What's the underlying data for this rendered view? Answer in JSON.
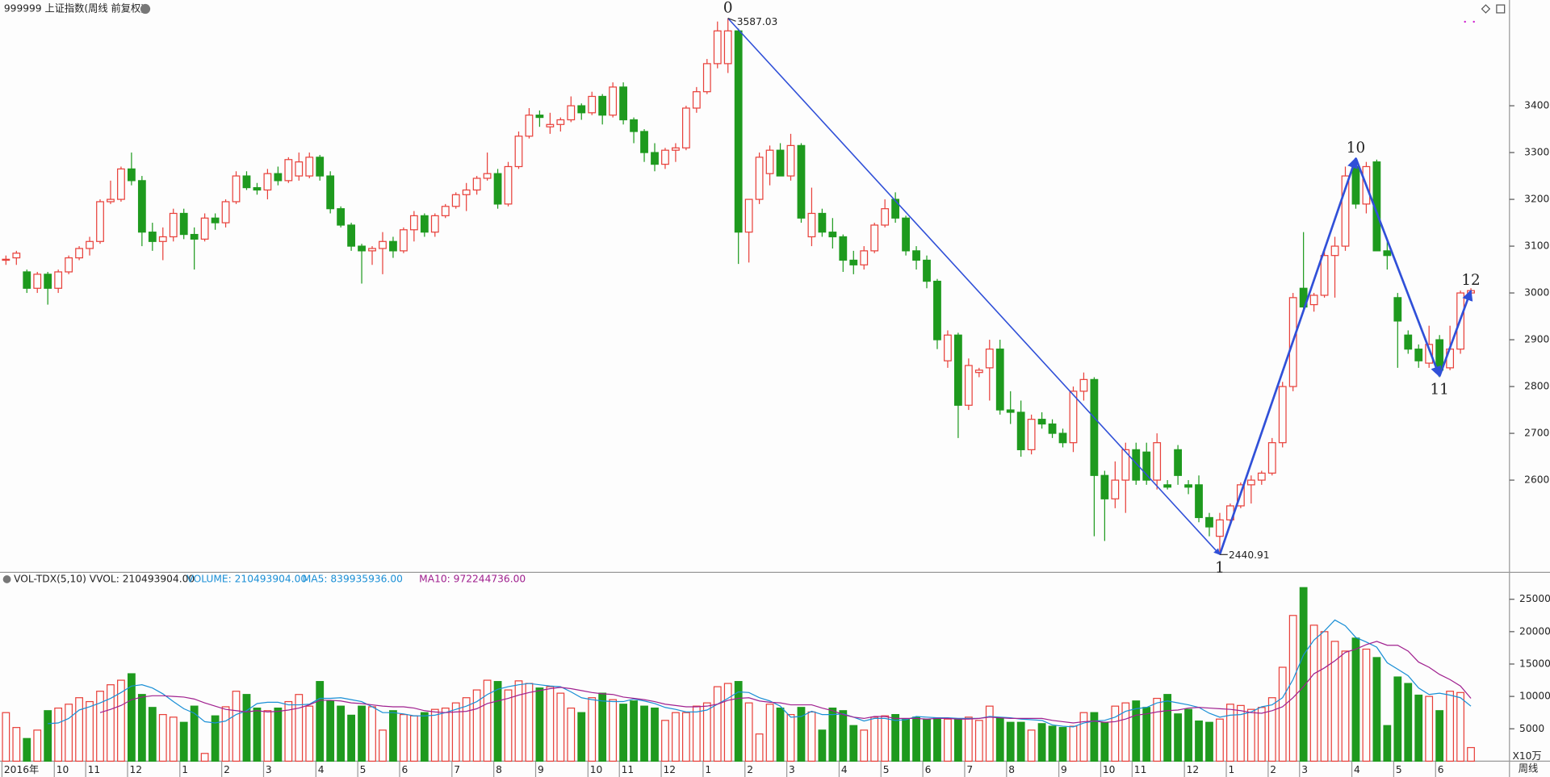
{
  "chart_data": {
    "type": "candlestick",
    "title": "999999 上证指数(周线 前复权)",
    "period_label": "周线",
    "vol_unit": "X10万",
    "vol_header": {
      "indicator": "VOL-TDX(5,10) VVOL: 210493904.00",
      "volume": "VOLUME: 210493904.00",
      "ma5": "MA5: 839935936.00",
      "ma10": "MA10: 972244736.00"
    },
    "up_color": "#e8403a",
    "down_color": "#1e9a1e",
    "ma5_color": "#1a8fd6",
    "ma10_color": "#a0208f",
    "wave_color": "#3050d8",
    "ylim": [
      2405,
      3626
    ],
    "yticks": [
      2600,
      2700,
      2800,
      2900,
      3000,
      3100,
      3200,
      3300,
      3400
    ],
    "vol_ylim": [
      0,
      29000
    ],
    "vol_yticks": [
      5000,
      10000,
      15000,
      20000,
      25000
    ],
    "categories": [
      "2016年",
      null,
      null,
      null,
      null,
      "10",
      null,
      null,
      "11",
      null,
      null,
      null,
      "12",
      null,
      null,
      null,
      null,
      "1",
      null,
      null,
      null,
      "2",
      null,
      null,
      null,
      "3",
      null,
      null,
      null,
      null,
      "4",
      null,
      null,
      null,
      "5",
      null,
      null,
      null,
      "6",
      null,
      null,
      null,
      null,
      "7",
      null,
      null,
      null,
      "8",
      null,
      null,
      null,
      "9",
      null,
      null,
      null,
      null,
      "10",
      null,
      null,
      "11",
      null,
      null,
      null,
      "12",
      null,
      null,
      null,
      "1",
      null,
      null,
      null,
      "2",
      null,
      null,
      null,
      "3",
      null,
      null,
      null,
      null,
      "4",
      null,
      null,
      null,
      "5",
      null,
      null,
      null,
      "6",
      null,
      null,
      null,
      "7",
      null,
      null,
      null,
      "8",
      null,
      null,
      null,
      null,
      "9",
      null,
      null,
      null,
      "10",
      null,
      null,
      "11",
      null,
      null,
      null,
      null,
      "12",
      null,
      null,
      null,
      "1",
      null,
      null,
      null,
      "2",
      null,
      null,
      "3",
      null,
      null,
      null,
      null,
      "4",
      null,
      null,
      null,
      "5",
      null,
      null,
      null,
      "6",
      null,
      null,
      null
    ],
    "candles": [
      [
        3070,
        3080,
        3060,
        3072
      ],
      [
        3075,
        3090,
        3060,
        3085
      ],
      [
        3045,
        3050,
        3000,
        3010
      ],
      [
        3010,
        3045,
        3000,
        3040
      ],
      [
        3040,
        3045,
        2975,
        3010
      ],
      [
        3010,
        3050,
        3000,
        3045
      ],
      [
        3045,
        3080,
        3040,
        3075
      ],
      [
        3075,
        3100,
        3070,
        3095
      ],
      [
        3095,
        3120,
        3080,
        3110
      ],
      [
        3110,
        3200,
        3105,
        3195
      ],
      [
        3195,
        3240,
        3190,
        3200
      ],
      [
        3200,
        3270,
        3195,
        3265
      ],
      [
        3265,
        3300,
        3230,
        3240
      ],
      [
        3240,
        3250,
        3100,
        3130
      ],
      [
        3130,
        3150,
        3090,
        3110
      ],
      [
        3110,
        3140,
        3070,
        3120
      ],
      [
        3120,
        3180,
        3110,
        3170
      ],
      [
        3170,
        3180,
        3115,
        3125
      ],
      [
        3125,
        3140,
        3050,
        3115
      ],
      [
        3115,
        3170,
        3110,
        3160
      ],
      [
        3160,
        3170,
        3135,
        3150
      ],
      [
        3150,
        3200,
        3140,
        3195
      ],
      [
        3195,
        3260,
        3190,
        3250
      ],
      [
        3250,
        3260,
        3220,
        3225
      ],
      [
        3225,
        3235,
        3210,
        3220
      ],
      [
        3220,
        3265,
        3200,
        3255
      ],
      [
        3255,
        3270,
        3230,
        3240
      ],
      [
        3240,
        3290,
        3235,
        3285
      ],
      [
        3250,
        3300,
        3240,
        3280
      ],
      [
        3250,
        3300,
        3245,
        3290
      ],
      [
        3290,
        3295,
        3240,
        3250
      ],
      [
        3250,
        3260,
        3170,
        3180
      ],
      [
        3180,
        3185,
        3140,
        3145
      ],
      [
        3145,
        3150,
        3090,
        3100
      ],
      [
        3100,
        3105,
        3020,
        3090
      ],
      [
        3090,
        3100,
        3060,
        3095
      ],
      [
        3095,
        3130,
        3040,
        3110
      ],
      [
        3110,
        3120,
        3075,
        3090
      ],
      [
        3090,
        3140,
        3085,
        3135
      ],
      [
        3135,
        3175,
        3110,
        3165
      ],
      [
        3165,
        3170,
        3120,
        3130
      ],
      [
        3130,
        3170,
        3120,
        3165
      ],
      [
        3165,
        3190,
        3160,
        3185
      ],
      [
        3185,
        3215,
        3180,
        3210
      ],
      [
        3210,
        3235,
        3175,
        3220
      ],
      [
        3220,
        3250,
        3210,
        3245
      ],
      [
        3245,
        3300,
        3240,
        3255
      ],
      [
        3255,
        3265,
        3180,
        3190
      ],
      [
        3190,
        3280,
        3185,
        3270
      ],
      [
        3270,
        3345,
        3265,
        3335
      ],
      [
        3335,
        3395,
        3330,
        3380
      ],
      [
        3380,
        3390,
        3355,
        3375
      ],
      [
        3355,
        3385,
        3340,
        3360
      ],
      [
        3360,
        3375,
        3345,
        3370
      ],
      [
        3370,
        3420,
        3365,
        3400
      ],
      [
        3400,
        3405,
        3370,
        3385
      ],
      [
        3385,
        3430,
        3380,
        3420
      ],
      [
        3420,
        3425,
        3360,
        3380
      ],
      [
        3380,
        3450,
        3375,
        3440
      ],
      [
        3440,
        3450,
        3360,
        3370
      ],
      [
        3370,
        3375,
        3320,
        3345
      ],
      [
        3345,
        3350,
        3280,
        3300
      ],
      [
        3300,
        3320,
        3260,
        3275
      ],
      [
        3275,
        3310,
        3265,
        3305
      ],
      [
        3305,
        3320,
        3280,
        3310
      ],
      [
        3310,
        3400,
        3305,
        3395
      ],
      [
        3395,
        3440,
        3385,
        3430
      ],
      [
        3430,
        3500,
        3425,
        3490
      ],
      [
        3490,
        3580,
        3480,
        3560
      ],
      [
        3490,
        3587.03,
        3470,
        3560
      ],
      [
        3560,
        3565,
        3062,
        3130
      ],
      [
        3130,
        3200,
        3065,
        3200
      ],
      [
        3200,
        3300,
        3190,
        3290
      ],
      [
        3255,
        3315,
        3230,
        3305
      ],
      [
        3305,
        3320,
        3250,
        3250
      ],
      [
        3250,
        3340,
        3240,
        3315
      ],
      [
        3315,
        3320,
        3150,
        3160
      ],
      [
        3120,
        3225,
        3100,
        3170
      ],
      [
        3170,
        3180,
        3120,
        3130
      ],
      [
        3130,
        3160,
        3095,
        3120
      ],
      [
        3120,
        3125,
        3045,
        3070
      ],
      [
        3070,
        3090,
        3040,
        3060
      ],
      [
        3060,
        3100,
        3050,
        3090
      ],
      [
        3090,
        3150,
        3085,
        3145
      ],
      [
        3145,
        3200,
        3140,
        3180
      ],
      [
        3200,
        3215,
        3150,
        3160
      ],
      [
        3160,
        3165,
        3080,
        3090
      ],
      [
        3090,
        3100,
        3050,
        3070
      ],
      [
        3070,
        3080,
        3010,
        3025
      ],
      [
        3025,
        3030,
        2880,
        2900
      ],
      [
        2855,
        2920,
        2840,
        2910
      ],
      [
        2910,
        2915,
        2690,
        2760
      ],
      [
        2760,
        2860,
        2750,
        2845
      ],
      [
        2830,
        2840,
        2820,
        2835
      ],
      [
        2840,
        2900,
        2770,
        2880
      ],
      [
        2880,
        2900,
        2740,
        2750
      ],
      [
        2750,
        2790,
        2720,
        2745
      ],
      [
        2745,
        2770,
        2650,
        2665
      ],
      [
        2665,
        2740,
        2655,
        2730
      ],
      [
        2730,
        2745,
        2710,
        2720
      ],
      [
        2720,
        2730,
        2690,
        2700
      ],
      [
        2700,
        2710,
        2670,
        2680
      ],
      [
        2680,
        2800,
        2660,
        2790
      ],
      [
        2790,
        2830,
        2770,
        2815
      ],
      [
        2815,
        2820,
        2480,
        2610
      ],
      [
        2610,
        2620,
        2470,
        2560
      ],
      [
        2560,
        2640,
        2540,
        2600
      ],
      [
        2600,
        2680,
        2530,
        2665
      ],
      [
        2665,
        2680,
        2590,
        2600
      ],
      [
        2660,
        2680,
        2590,
        2600
      ],
      [
        2600,
        2700,
        2580,
        2680
      ],
      [
        2590,
        2600,
        2580,
        2585
      ],
      [
        2665,
        2675,
        2590,
        2610
      ],
      [
        2590,
        2600,
        2570,
        2585
      ],
      [
        2590,
        2610,
        2510,
        2520
      ],
      [
        2520,
        2530,
        2480,
        2500
      ],
      [
        2480,
        2530,
        2440.91,
        2515
      ],
      [
        2515,
        2550,
        2505,
        2545
      ],
      [
        2545,
        2595,
        2540,
        2590
      ],
      [
        2590,
        2610,
        2550,
        2600
      ],
      [
        2600,
        2620,
        2590,
        2615
      ],
      [
        2615,
        2690,
        2610,
        2680
      ],
      [
        2680,
        2810,
        2670,
        2800
      ],
      [
        2800,
        3000,
        2790,
        2990
      ],
      [
        3010,
        3130,
        2960,
        2970
      ],
      [
        2975,
        3000,
        2960,
        2995
      ],
      [
        2995,
        3090,
        2990,
        3080
      ],
      [
        3080,
        3120,
        2990,
        3100
      ],
      [
        3100,
        3270,
        3090,
        3250
      ],
      [
        3270,
        3288,
        3180,
        3190
      ],
      [
        3190,
        3280,
        3170,
        3270
      ],
      [
        3280,
        3285,
        3090,
        3090
      ],
      [
        3090,
        3110,
        3050,
        3080
      ],
      [
        2990,
        3000,
        2840,
        2940
      ],
      [
        2910,
        2920,
        2870,
        2880
      ],
      [
        2880,
        2890,
        2840,
        2855
      ],
      [
        2850,
        2930,
        2840,
        2890
      ],
      [
        2900,
        2910,
        2820,
        2835
      ],
      [
        2840,
        2930,
        2835,
        2880
      ],
      [
        2880,
        3005,
        2870,
        3000
      ],
      [
        3000,
        3010,
        2995,
        3005
      ]
    ],
    "volumes": [
      7500,
      5200,
      3500,
      4800,
      7800,
      8200,
      8800,
      9800,
      9200,
      10800,
      11800,
      12500,
      13500,
      10300,
      8300,
      7200,
      6800,
      6000,
      8500,
      1200,
      7000,
      8400,
      10800,
      10300,
      8200,
      7800,
      8200,
      9200,
      10300,
      8500,
      12300,
      9300,
      8500,
      7100,
      8500,
      8400,
      4800,
      7800,
      7200,
      7000,
      7500,
      8000,
      8200,
      9000,
      9800,
      11000,
      12500,
      12300,
      11000,
      12400,
      12000,
      11300,
      11500,
      10500,
      8200,
      7500,
      9800,
      10500,
      9500,
      8800,
      9300,
      8500,
      8200,
      6300,
      7500,
      7500,
      8500,
      9000,
      11500,
      12000,
      12300,
      9000,
      4200,
      8800,
      8200,
      7200,
      8300,
      7600,
      4800,
      8200,
      7800,
      5500,
      4800,
      6800,
      7000,
      7200,
      6500,
      6800,
      6500,
      6700,
      6500,
      6500,
      6800,
      6300,
      8500,
      6700,
      6000,
      6000,
      4800,
      5800,
      5400,
      5200,
      5400,
      7500,
      7500,
      6000,
      8500,
      9000,
      9300,
      8300,
      9700,
      10300,
      7300,
      8000,
      6200,
      6000,
      6500,
      8800,
      8600,
      8000,
      8300,
      9800,
      14500,
      22500,
      26800,
      21000,
      20000,
      18500,
      17000,
      19000,
      17300,
      16000,
      5500,
      13000,
      12000,
      10200,
      10000,
      7800,
      10800,
      10600,
      2100
    ],
    "ma5": [
      null,
      null,
      null,
      null,
      5800,
      5900,
      6600,
      7900,
      8400,
      9000,
      9700,
      10600,
      11600,
      11800,
      11300,
      10400,
      9200,
      8100,
      7400,
      6100,
      5900,
      6200,
      7200,
      7800,
      8900,
      9100,
      9100,
      8700,
      8700,
      8800,
      9700,
      9700,
      9800,
      9500,
      9200,
      8400,
      7500,
      7500,
      7300,
      7000,
      7000,
      7100,
      7500,
      8000,
      8500,
      9200,
      10300,
      11100,
      11500,
      11800,
      12000,
      11800,
      11600,
      11500,
      10700,
      9800,
      9500,
      9300,
      9200,
      9200,
      9600,
      9300,
      8900,
      8300,
      8000,
      7600,
      7600,
      7900,
      8800,
      9700,
      10700,
      10600,
      9800,
      9300,
      8500,
      6800,
      6900,
      7700,
      7200,
      7200,
      7300,
      6800,
      6200,
      6600,
      6600,
      6300,
      6400,
      6900,
      6800,
      6700,
      6700,
      6600,
      6600,
      6600,
      6900,
      6800,
      6700,
      6500,
      6400,
      6300,
      5600,
      5400,
      5300,
      5900,
      6200,
      6300,
      6800,
      7700,
      8100,
      8300,
      9000,
      9300,
      9000,
      8700,
      8300,
      7400,
      6800,
      7100,
      7200,
      7600,
      8400,
      8700,
      9800,
      12600,
      16400,
      18700,
      20100,
      21800,
      20900,
      19100,
      18400,
      17600,
      15200,
      14200,
      13200,
      11300,
      10300,
      10500,
      10200,
      9800,
      8500
    ],
    "ma10": [
      null,
      null,
      null,
      null,
      null,
      null,
      null,
      null,
      null,
      7500,
      8000,
      8600,
      9500,
      9900,
      10100,
      10100,
      10000,
      9900,
      9600,
      9000,
      8500,
      8000,
      7800,
      7600,
      7800,
      7600,
      7700,
      7900,
      8200,
      8700,
      9400,
      9400,
      9300,
      9000,
      8900,
      8700,
      8500,
      8400,
      8400,
      8200,
      7800,
      7600,
      7500,
      7600,
      7700,
      8100,
      8900,
      9300,
      9700,
      10200,
      10600,
      10900,
      11200,
      11400,
      11200,
      10900,
      10600,
      10400,
      10300,
      9900,
      9700,
      9500,
      9200,
      8800,
      8600,
      8400,
      8400,
      8500,
      8800,
      9400,
      9700,
      9800,
      9300,
      9100,
      9000,
      8700,
      8700,
      8700,
      8200,
      7800,
      7200,
      6800,
      6600,
      6900,
      6900,
      6600,
      6600,
      6600,
      6500,
      6600,
      6600,
      6500,
      6500,
      6600,
      6800,
      6700,
      6600,
      6600,
      6600,
      6600,
      6300,
      6100,
      5900,
      6100,
      6200,
      6000,
      6100,
      6500,
      7100,
      7300,
      7600,
      7800,
      7900,
      8200,
      8300,
      8200,
      8100,
      8000,
      7800,
      7500,
      7400,
      7800,
      8400,
      9800,
      11500,
      13500,
      14400,
      15500,
      16800,
      17300,
      18000,
      18500,
      17900,
      17900,
      17000,
      15300,
      14500,
      13400,
      12600,
      11600,
      9700
    ],
    "waves": [
      {
        "label": "0",
        "index": 69,
        "value": 3587.03,
        "value_label": "3587.03"
      },
      {
        "label": "1",
        "index": 116,
        "value": 2440.91,
        "value_label": "2440.91"
      },
      {
        "label": "10",
        "index": 129,
        "value": 3288
      },
      {
        "label": "11",
        "index": 137,
        "value": 2822
      },
      {
        "label": "12",
        "index": 140,
        "value": 3005
      }
    ]
  }
}
